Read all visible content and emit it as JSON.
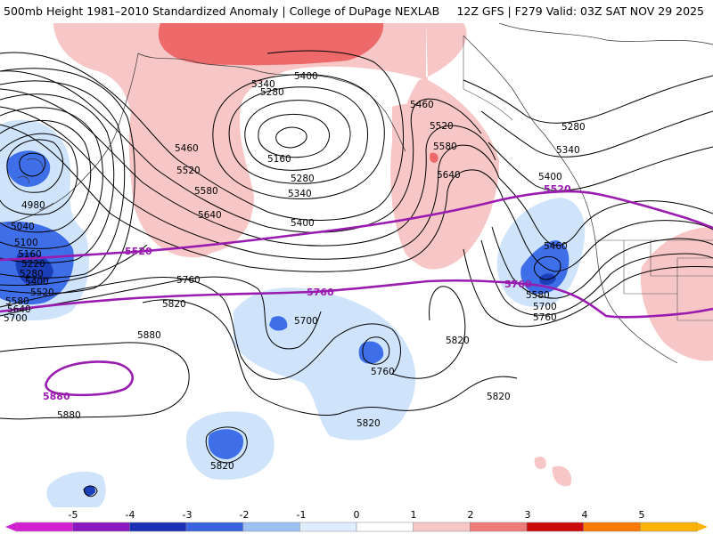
{
  "header": {
    "title_left": "500mb Height 1981–2010 Standardized Anomaly | College of DuPage NEXLAB",
    "title_right": "12Z GFS | F279 Valid: 03Z SAT NOV 29 2025"
  },
  "colors": {
    "anom_pos1": "#f7c6c6",
    "anom_pos2": "#ee6a6a",
    "anom_neg1": "#cfe3fb",
    "anom_neg2": "#3f6fe8",
    "anom_neg3": "#1a3fb8",
    "highlight_line": "#9a1bb0",
    "contour": "#000000",
    "coast": "#333333"
  },
  "map": {
    "contour_labels": [
      "5400",
      "5340",
      "5280",
      "5160",
      "5280",
      "5340",
      "5400",
      "5460",
      "5520",
      "5580",
      "5640",
      "5460",
      "5520",
      "5580",
      "5640",
      "5280",
      "5340",
      "5400",
      "5460",
      "5580",
      "5700",
      "5760",
      "4980",
      "5040",
      "5100",
      "5160",
      "5220",
      "5280",
      "5400",
      "5520",
      "5580",
      "5640",
      "5700",
      "5760",
      "5820",
      "5880",
      "5880",
      "5700",
      "5760",
      "5820",
      "5820",
      "5820",
      "5820"
    ],
    "highlight_labels": [
      "5520",
      "5760",
      "5520",
      "5760",
      "5880"
    ]
  },
  "colorbar": {
    "ticks": [
      "-5",
      "-4",
      "-3",
      "-2",
      "-1",
      "0",
      "1",
      "2",
      "3",
      "4",
      "5"
    ],
    "colors": [
      "#d21fd2",
      "#8a17c2",
      "#1c2fb5",
      "#3a63e0",
      "#9cc1f5",
      "#dfeefe",
      "#ffffff",
      "#f7c6c6",
      "#ee7a7a",
      "#cc0a0a",
      "#ff7a00",
      "#ffb300"
    ]
  }
}
